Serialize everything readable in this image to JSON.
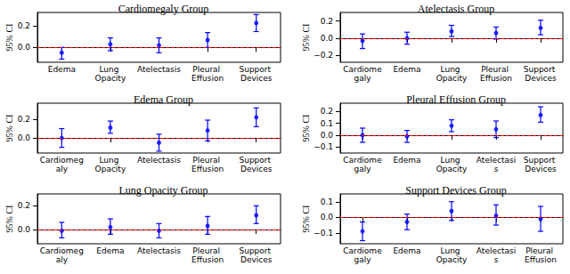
{
  "chart_data": [
    {
      "type": "errorbar",
      "title": "Cardiomegaly Group",
      "ylabel": "95% CI",
      "categories": [
        "Edema",
        "Lung Opacity",
        "Atelectasis",
        "Pleural Effusion",
        "Support Devices"
      ],
      "values": [
        -0.05,
        0.03,
        0.02,
        0.07,
        0.23
      ],
      "ci_low": [
        -0.11,
        -0.03,
        -0.05,
        0.0,
        0.15
      ],
      "ci_high": [
        0.0,
        0.09,
        0.09,
        0.14,
        0.31
      ],
      "color": "#0000ff",
      "marker": "circle",
      "ref_line": {
        "value": 0,
        "color": "#ff0000",
        "line_style": "dashed"
      },
      "ylim": [
        -0.14,
        0.33
      ],
      "yticks": [
        {
          "value": 0,
          "label": "0.0"
        },
        {
          "value": 0.2,
          "label": "0.2"
        }
      ],
      "grid": false
    },
    {
      "type": "errorbar",
      "title": "Atelectasis Group",
      "ylabel": "95% CI",
      "categories": [
        "Cardiomegaly",
        "Edema",
        "Lung Opacity",
        "Pleural Effusion",
        "Support Devices"
      ],
      "values": [
        -0.03,
        0.0,
        0.08,
        0.06,
        0.12
      ],
      "ci_low": [
        -0.12,
        -0.07,
        0.02,
        -0.01,
        0.04
      ],
      "ci_high": [
        0.05,
        0.07,
        0.15,
        0.13,
        0.21
      ],
      "color": "#0000ff",
      "marker": "circle",
      "ref_line": {
        "value": 0,
        "color": "#ff0000",
        "line_style": "dashed"
      },
      "ylim": [
        -0.28,
        0.3
      ],
      "yticks": [
        {
          "value": -0.2,
          "label": "−0.2"
        },
        {
          "value": 0,
          "label": "0.0"
        },
        {
          "value": 0.2,
          "label": "0.2"
        }
      ],
      "grid": false
    },
    {
      "type": "errorbar",
      "title": "Edema Group",
      "ylabel": "95% CI",
      "categories": [
        "Cardiomegaly",
        "Lung Opacity",
        "Atelectasis",
        "Pleural Effusion",
        "Support Devices"
      ],
      "values": [
        0.0,
        0.11,
        -0.05,
        0.08,
        0.22
      ],
      "ci_low": [
        -0.1,
        0.05,
        -0.14,
        -0.03,
        0.12
      ],
      "ci_high": [
        0.1,
        0.18,
        0.04,
        0.19,
        0.32
      ],
      "color": "#0000ff",
      "marker": "circle",
      "ref_line": {
        "value": 0,
        "color": "#ff0000",
        "line_style": "dashed"
      },
      "ylim": [
        -0.16,
        0.37
      ],
      "yticks": [
        {
          "value": 0,
          "label": "0.0"
        },
        {
          "value": 0.2,
          "label": "0.2"
        }
      ],
      "grid": false
    },
    {
      "type": "errorbar",
      "title": "Pleural Effusion Group",
      "ylabel": "95% CI",
      "categories": [
        "Cardiomegaly",
        "Edema",
        "Lung Opacity",
        "Atelectasis",
        "Support Devices"
      ],
      "values": [
        0.0,
        -0.01,
        0.08,
        0.05,
        0.17
      ],
      "ci_low": [
        -0.06,
        -0.06,
        0.03,
        -0.02,
        0.11
      ],
      "ci_high": [
        0.06,
        0.04,
        0.13,
        0.12,
        0.24
      ],
      "color": "#0000ff",
      "marker": "circle",
      "ref_line": {
        "value": 0,
        "color": "#ff0000",
        "line_style": "dashed"
      },
      "ylim": [
        -0.15,
        0.27
      ],
      "yticks": [
        {
          "value": -0.1,
          "label": "−0.1"
        },
        {
          "value": 0,
          "label": "0.0"
        },
        {
          "value": 0.1,
          "label": "0.1"
        },
        {
          "value": 0.2,
          "label": "0.2"
        }
      ],
      "grid": false
    },
    {
      "type": "errorbar",
      "title": "Lung Opacity Group",
      "ylabel": "95% CI",
      "categories": [
        "Cardiomegaly",
        "Edema",
        "Atelectasis",
        "Pleural Effusion",
        "Support Devices"
      ],
      "values": [
        -0.01,
        0.02,
        -0.01,
        0.03,
        0.12
      ],
      "ci_low": [
        -0.07,
        -0.04,
        -0.07,
        -0.04,
        0.05
      ],
      "ci_high": [
        0.06,
        0.09,
        0.05,
        0.11,
        0.2
      ],
      "color": "#0000ff",
      "marker": "circle",
      "ref_line": {
        "value": 0,
        "color": "#ff0000",
        "line_style": "dashed"
      },
      "ylim": [
        -0.12,
        0.3
      ],
      "yticks": [
        {
          "value": 0,
          "label": "0.0"
        },
        {
          "value": 0.2,
          "label": "0.2"
        }
      ],
      "grid": false
    },
    {
      "type": "errorbar",
      "title": "Support Devices Group",
      "ylabel": "95% CI",
      "categories": [
        "Cardiomegaly",
        "Edema",
        "Lung Opacity",
        "Atelectasis",
        "Pleural Effusion"
      ],
      "values": [
        -0.09,
        -0.03,
        0.04,
        0.01,
        -0.01
      ],
      "ci_low": [
        -0.15,
        -0.08,
        -0.02,
        -0.05,
        -0.09
      ],
      "ci_high": [
        -0.03,
        0.02,
        0.1,
        0.08,
        0.07
      ],
      "color": "#0000ff",
      "marker": "circle",
      "ref_line": {
        "value": 0,
        "color": "#ff0000",
        "line_style": "dashed"
      },
      "ylim": [
        -0.17,
        0.15
      ],
      "yticks": [
        {
          "value": -0.1,
          "label": "−0.1"
        },
        {
          "value": 0,
          "label": "0.0"
        },
        {
          "value": 0.1,
          "label": "0.1"
        }
      ],
      "grid": false
    }
  ]
}
